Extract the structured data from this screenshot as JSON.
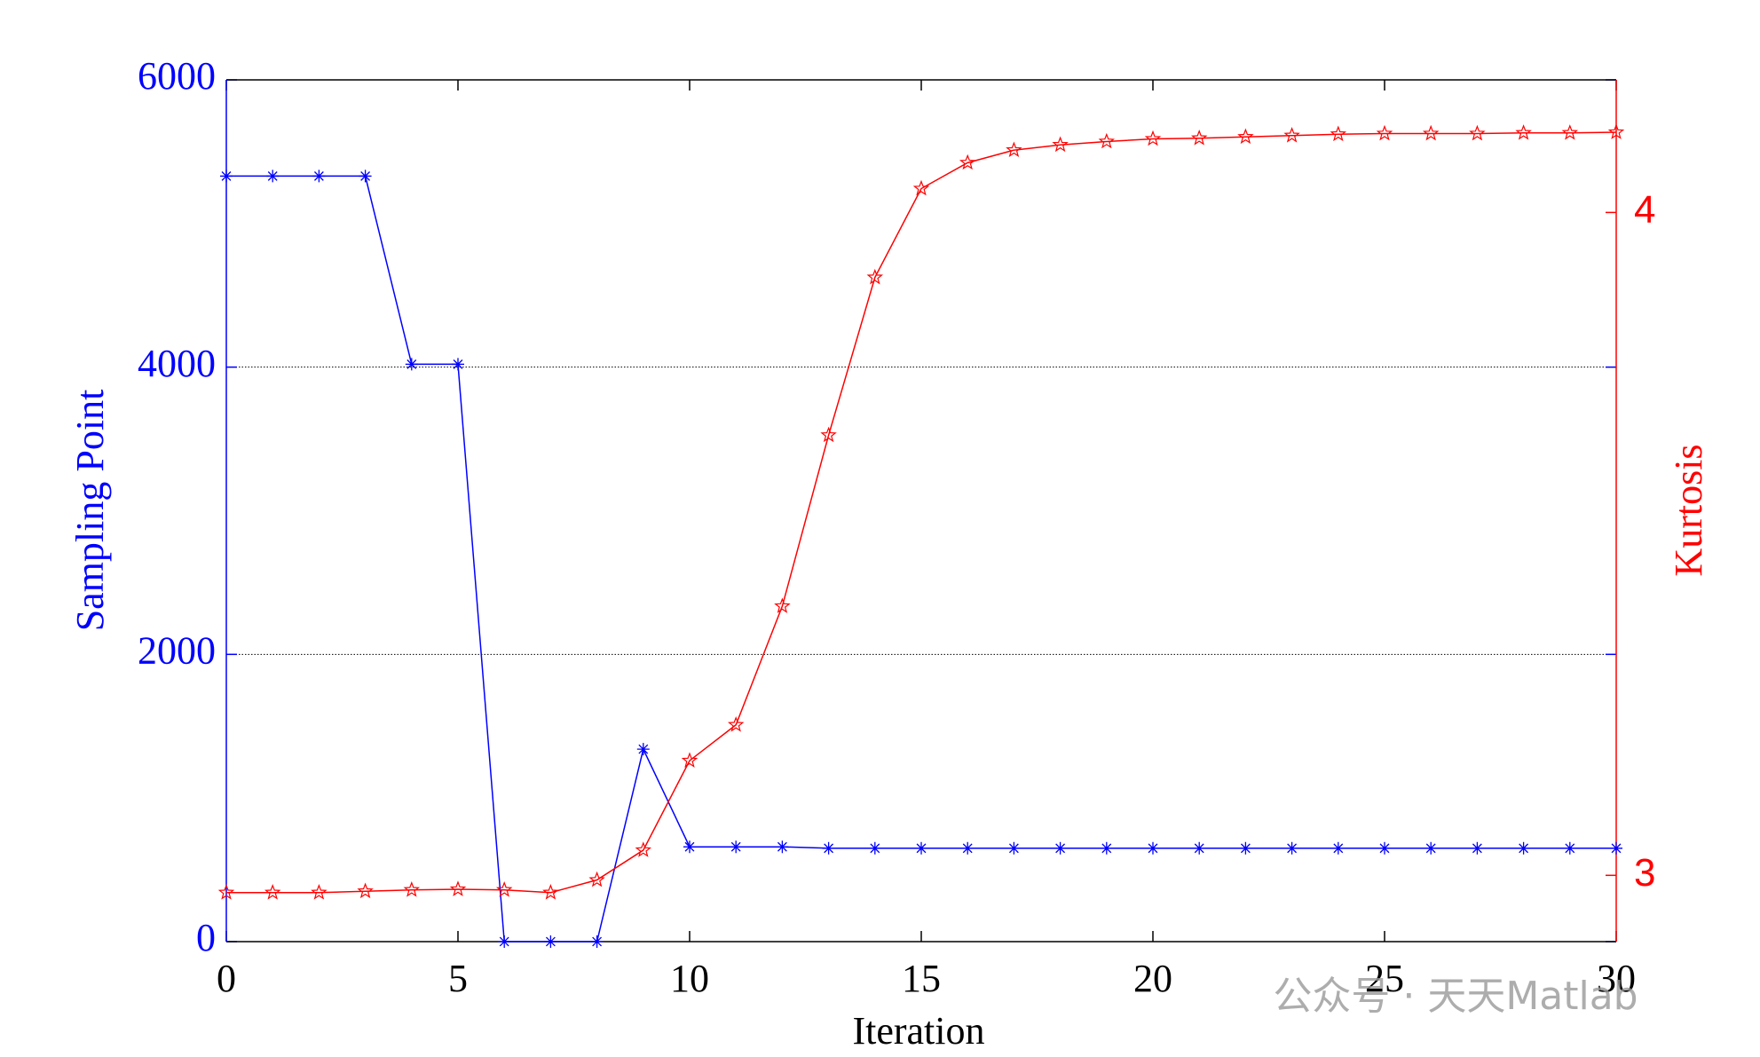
{
  "chart_data": {
    "type": "line",
    "x_label": "Iteration",
    "y_label": "Sampling Point",
    "y2_label": "Kurtosis",
    "watermark": "公众号 · 天天Matlab",
    "x": [
      0,
      1,
      2,
      3,
      4,
      5,
      6,
      7,
      8,
      9,
      10,
      11,
      12,
      13,
      14,
      15,
      16,
      17,
      18,
      19,
      20,
      21,
      22,
      23,
      24,
      25,
      26,
      27,
      28,
      29,
      30
    ],
    "series": [
      {
        "name": "Sampling Point",
        "color": "#0000ff",
        "marker": "asterisk",
        "values": [
          5330,
          5330,
          5330,
          5330,
          4020,
          4020,
          0,
          0,
          0,
          1340,
          660,
          660,
          660,
          650,
          650,
          650,
          650,
          650,
          650,
          650,
          650,
          650,
          650,
          650,
          650,
          650,
          650,
          650,
          650,
          650,
          650
        ]
      },
      {
        "name": "Kurtosis",
        "color": "#ff0000",
        "marker": "star",
        "axis": "y2",
        "values": [
          2.974,
          2.974,
          2.974,
          2.976,
          2.978,
          2.979,
          2.978,
          2.974,
          2.993,
          3.038,
          3.173,
          3.227,
          3.406,
          3.664,
          3.902,
          4.036,
          4.075,
          4.094,
          4.102,
          4.107,
          4.111,
          4.112,
          4.114,
          4.116,
          4.118,
          4.119,
          4.119,
          4.119,
          4.12,
          4.12,
          4.121
        ]
      }
    ],
    "xlim": [
      0,
      30
    ],
    "xticks": [
      0,
      5,
      10,
      15,
      20,
      25,
      30
    ],
    "ylim": [
      0,
      6000
    ],
    "yticks": [
      0,
      2000,
      4000,
      6000
    ],
    "y2lim": [
      2.9,
      4.2
    ],
    "y2ticks": [
      3,
      4
    ],
    "grid": true
  }
}
